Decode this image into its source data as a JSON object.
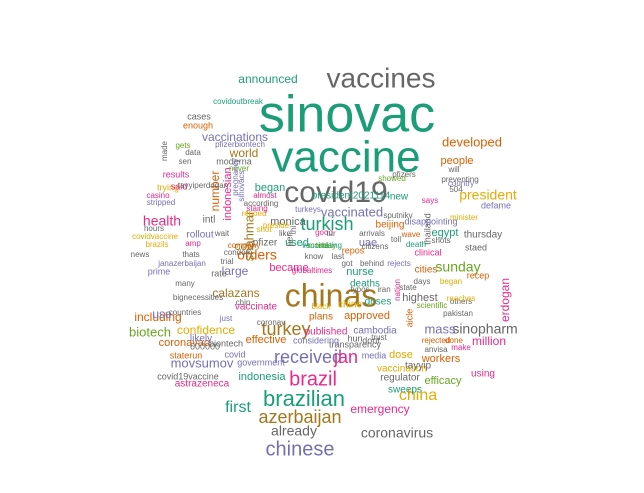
{
  "palette": {
    "green": "#1b9e77",
    "orange": "#d95f02",
    "purple": "#7570b3",
    "magenta": "#e7298a",
    "olive": "#66a61e",
    "gold": "#e6ab02",
    "brown": "#a6761d",
    "gray": "#666666"
  },
  "words": [
    {
      "text": "sinovac",
      "color": "green"
    },
    {
      "text": "vaccine",
      "color": "green"
    },
    {
      "text": "vaccines",
      "color": "gray"
    },
    {
      "text": "covid19",
      "color": "gray"
    },
    {
      "text": "chinas",
      "color": "brown"
    },
    {
      "text": "brazilian",
      "color": "green"
    },
    {
      "text": "chinese",
      "color": "purple"
    },
    {
      "text": "azerbaijan",
      "color": "brown"
    },
    {
      "text": "received",
      "color": "purple"
    },
    {
      "text": "brazil",
      "color": "magenta"
    },
    {
      "text": "turkey",
      "color": "brown"
    },
    {
      "text": "turkish",
      "color": "green"
    },
    {
      "text": "coronavirus",
      "color": "gray"
    },
    {
      "text": "china",
      "color": "gold"
    },
    {
      "text": "jan",
      "color": "magenta"
    },
    {
      "text": "sinopharm",
      "color": "gray"
    },
    {
      "text": "president",
      "color": "gold"
    },
    {
      "text": "developed",
      "color": "orange"
    },
    {
      "text": "first",
      "color": "green"
    },
    {
      "text": "announced",
      "color": "green"
    },
    {
      "text": "vaccinations",
      "color": "purple"
    },
    {
      "text": "mass",
      "color": "purple"
    },
    {
      "text": "sunday",
      "color": "olive"
    },
    {
      "text": "vaccinated",
      "color": "purple"
    },
    {
      "text": "orders",
      "color": "orange"
    },
    {
      "text": "health",
      "color": "magenta"
    },
    {
      "text": "erdogan",
      "color": "magenta"
    },
    {
      "text": "already",
      "color": "gray"
    },
    {
      "text": "biotech",
      "color": "olive"
    },
    {
      "text": "movsumov",
      "color": "purple"
    },
    {
      "text": "emergency",
      "color": "magenta"
    },
    {
      "text": "world",
      "color": "brown"
    },
    {
      "text": "number",
      "color": "orange"
    },
    {
      "text": "including",
      "color": "orange"
    },
    {
      "text": "calazans",
      "color": "brown"
    },
    {
      "text": "began",
      "color": "green"
    },
    {
      "text": "people",
      "color": "orange"
    },
    {
      "text": "large",
      "color": "purple"
    },
    {
      "text": "became",
      "color": "magenta"
    },
    {
      "text": "nurse",
      "color": "green"
    },
    {
      "text": "highest",
      "color": "gray"
    },
    {
      "text": "indonesia",
      "color": "green"
    },
    {
      "text": "shahmar",
      "color": "brown"
    },
    {
      "text": "indonesian",
      "color": "magenta"
    },
    {
      "text": "new",
      "color": "green"
    },
    {
      "text": "president2021114",
      "color": "green"
    },
    {
      "text": "monica",
      "color": "gray"
    },
    {
      "text": "use",
      "color": "purple"
    },
    {
      "text": "used",
      "color": "green"
    },
    {
      "text": "confidence",
      "color": "gold"
    },
    {
      "text": "coronavac",
      "color": "orange"
    },
    {
      "text": "approved",
      "color": "orange"
    },
    {
      "text": "workers",
      "color": "orange"
    },
    {
      "text": "million",
      "color": "magenta"
    },
    {
      "text": "efficacy",
      "color": "olive"
    },
    {
      "text": "vaccination",
      "color": "gold"
    },
    {
      "text": "effective",
      "color": "orange"
    },
    {
      "text": "plans",
      "color": "orange"
    },
    {
      "text": "dose",
      "color": "gold"
    },
    {
      "text": "sweeps",
      "color": "green"
    },
    {
      "text": "vaccinate",
      "color": "magenta"
    },
    {
      "text": "egypt",
      "color": "green"
    },
    {
      "text": "uae",
      "color": "purple"
    },
    {
      "text": "cou",
      "color": "brown"
    },
    {
      "text": "intl",
      "color": "gray"
    },
    {
      "text": "pfizer",
      "color": "gray"
    },
    {
      "text": "beijing",
      "color": "orange"
    },
    {
      "text": "thursday",
      "color": "gray"
    },
    {
      "text": "cities",
      "color": "orange"
    },
    {
      "text": "doses",
      "color": "green"
    },
    {
      "text": "chine",
      "color": "gold"
    },
    {
      "text": "deaths",
      "color": "green"
    },
    {
      "text": "rollout",
      "color": "purple"
    },
    {
      "text": "astrazeneca",
      "color": "magenta"
    },
    {
      "text": "regulator",
      "color": "gray"
    },
    {
      "text": "transparency",
      "color": "gray"
    },
    {
      "text": "published",
      "color": "magenta"
    },
    {
      "text": "cambodia",
      "color": "purple"
    },
    {
      "text": "media",
      "color": "purple"
    },
    {
      "text": "tayyip",
      "color": "gray"
    },
    {
      "text": "using",
      "color": "magenta"
    },
    {
      "text": "likely",
      "color": "purple"
    },
    {
      "text": "covid",
      "color": "purple"
    },
    {
      "text": "600000",
      "color": "gray"
    },
    {
      "text": "biontech",
      "color": "gray"
    },
    {
      "text": "staterun",
      "color": "orange"
    },
    {
      "text": "covid19vaccine",
      "color": "gray"
    },
    {
      "text": "government",
      "color": "purple"
    },
    {
      "text": "considering",
      "color": "purple"
    },
    {
      "text": "hun",
      "color": "gray"
    },
    {
      "text": "dont",
      "color": "gray"
    },
    {
      "text": "trust",
      "color": "gray"
    },
    {
      "text": "anvisa",
      "color": "gray"
    },
    {
      "text": "make",
      "color": "magenta"
    },
    {
      "text": "rejected",
      "color": "orange"
    },
    {
      "text": "done",
      "color": "orange"
    },
    {
      "text": "pakistan",
      "color": "gray"
    },
    {
      "text": "scientific",
      "color": "olive"
    },
    {
      "text": "others",
      "color": "gray"
    },
    {
      "text": "reaches",
      "color": "gold"
    },
    {
      "text": "days",
      "color": "gray"
    },
    {
      "text": "began",
      "color": "gold"
    },
    {
      "text": "recep",
      "color": "orange"
    },
    {
      "text": "rejects",
      "color": "purple"
    },
    {
      "text": "state",
      "color": "gray"
    },
    {
      "text": "nation",
      "color": "magenta"
    },
    {
      "text": "aicle",
      "color": "orange"
    },
    {
      "text": "typos",
      "color": "gray"
    },
    {
      "text": "iran",
      "color": "gray"
    },
    {
      "text": "got",
      "color": "gray"
    },
    {
      "text": "behind",
      "color": "gray"
    },
    {
      "text": "last",
      "color": "gray"
    },
    {
      "text": "know",
      "color": "gray"
    },
    {
      "text": "globaltimes",
      "color": "magenta"
    },
    {
      "text": "black",
      "color": "gold"
    },
    {
      "text": "coronav",
      "color": "gray"
    },
    {
      "text": "chin",
      "color": "gray"
    },
    {
      "text": "condom",
      "color": "gray"
    },
    {
      "text": "bignecessities",
      "color": "gray"
    },
    {
      "text": "rate",
      "color": "gray"
    },
    {
      "text": "many",
      "color": "gray"
    },
    {
      "text": "prime",
      "color": "purple"
    },
    {
      "text": "trial",
      "color": "gray"
    },
    {
      "text": "janazerbaijan",
      "color": "purple"
    },
    {
      "text": "news",
      "color": "gray"
    },
    {
      "text": "thats",
      "color": "gray"
    },
    {
      "text": "amp",
      "color": "magenta"
    },
    {
      "text": "company",
      "color": "orange"
    },
    {
      "text": "hours",
      "color": "gray"
    },
    {
      "text": "covidvaccine",
      "color": "gold"
    },
    {
      "text": "brazils",
      "color": "gold"
    },
    {
      "text": "wait",
      "color": "gray"
    },
    {
      "text": "stripped",
      "color": "purple"
    },
    {
      "text": "trying",
      "color": "gold"
    },
    {
      "text": "results",
      "color": "magenta"
    },
    {
      "text": "said",
      "color": "magenta"
    },
    {
      "text": "casino",
      "color": "magenta"
    },
    {
      "text": "tayyiperdogan",
      "color": "gray"
    },
    {
      "text": "sen",
      "color": "gray"
    },
    {
      "text": "gets",
      "color": "olive"
    },
    {
      "text": "data",
      "color": "gray"
    },
    {
      "text": "made",
      "color": "gray"
    },
    {
      "text": "cases",
      "color": "gray"
    },
    {
      "text": "enough",
      "color": "orange"
    },
    {
      "text": "covidoutbreak",
      "color": "green"
    },
    {
      "text": "pfizerbiontech",
      "color": "purple"
    },
    {
      "text": "never",
      "color": "olive"
    },
    {
      "text": "moderna",
      "color": "gray"
    },
    {
      "text": "pregnancy",
      "color": "purple"
    },
    {
      "text": "sinovacs",
      "color": "purple"
    },
    {
      "text": "almost",
      "color": "magenta"
    },
    {
      "text": "according",
      "color": "gray"
    },
    {
      "text": "repoed",
      "color": "gold"
    },
    {
      "text": "preside",
      "color": "gold"
    },
    {
      "text": "shot",
      "color": "gold"
    },
    {
      "text": "like",
      "color": "gray"
    },
    {
      "text": "thi",
      "color": "gray"
    },
    {
      "text": "per",
      "color": "gray"
    },
    {
      "text": "turkeys",
      "color": "purple"
    },
    {
      "text": "good",
      "color": "magenta"
    },
    {
      "text": "tur",
      "color": "gray"
    },
    {
      "text": "arrivals",
      "color": "gray"
    },
    {
      "text": "toll",
      "color": "gray"
    },
    {
      "text": "thailand",
      "color": "gray"
    },
    {
      "text": "sputnikv",
      "color": "gray"
    },
    {
      "text": "wave",
      "color": "orange"
    },
    {
      "text": "death",
      "color": "green"
    },
    {
      "text": "shots",
      "color": "gray"
    },
    {
      "text": "disappointing",
      "color": "purple"
    },
    {
      "text": "minister",
      "color": "gold"
    },
    {
      "text": "clinical",
      "color": "magenta"
    },
    {
      "text": "staed",
      "color": "gray"
    },
    {
      "text": "showed",
      "color": "olive"
    },
    {
      "text": "pfizers",
      "color": "gray"
    },
    {
      "text": "will",
      "color": "gray"
    },
    {
      "text": "504",
      "color": "gray"
    },
    {
      "text": "preventing",
      "color": "gray"
    },
    {
      "text": "country",
      "color": "purple"
    },
    {
      "text": "says",
      "color": "magenta"
    },
    {
      "text": "defame",
      "color": "purple"
    },
    {
      "text": "citizens",
      "color": "gray"
    },
    {
      "text": "repos",
      "color": "orange"
    },
    {
      "text": "staing",
      "color": "magenta"
    },
    {
      "text": "just",
      "color": "purple"
    },
    {
      "text": "countries",
      "color": "gray"
    },
    {
      "text": "monday",
      "color": "olive"
    },
    {
      "text": "tshi",
      "color": "olive"
    },
    {
      "text": "vaccinating",
      "color": "green"
    }
  ]
}
